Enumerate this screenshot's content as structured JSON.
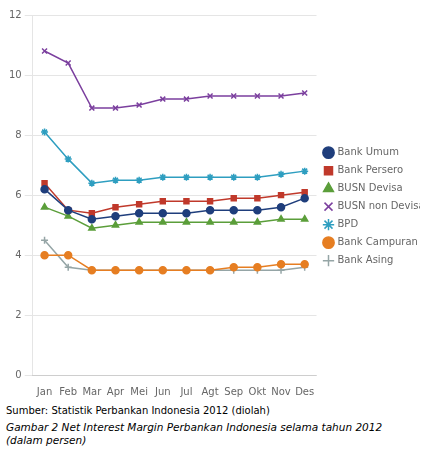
{
  "chart_data": {
    "type": "line",
    "categories": [
      "Jan",
      "Feb",
      "Mar",
      "Apr",
      "Mei",
      "Jun",
      "Jul",
      "Agt",
      "Sep",
      "Okt",
      "Nov",
      "Des"
    ],
    "series": [
      {
        "name": "Bank Umum",
        "color": "#1F3E7C",
        "marker": "circle",
        "values": [
          6.2,
          5.5,
          5.2,
          5.3,
          5.4,
          5.4,
          5.4,
          5.5,
          5.5,
          5.5,
          5.6,
          5.9
        ]
      },
      {
        "name": "Bank Persero",
        "color": "#C0392B",
        "marker": "square",
        "values": [
          6.4,
          5.5,
          5.4,
          5.6,
          5.7,
          5.8,
          5.8,
          5.8,
          5.9,
          5.9,
          6.0,
          6.1
        ]
      },
      {
        "name": "BUSN Devisa",
        "color": "#5B9E3A",
        "marker": "triangle",
        "values": [
          5.6,
          5.3,
          4.9,
          5.0,
          5.1,
          5.1,
          5.1,
          5.1,
          5.1,
          5.1,
          5.2,
          5.2
        ]
      },
      {
        "name": "BUSN non Devisa",
        "color": "#7B3F9E",
        "marker": "x",
        "values": [
          10.8,
          10.4,
          8.9,
          8.9,
          9.0,
          9.2,
          9.2,
          9.3,
          9.3,
          9.3,
          9.3,
          9.4
        ]
      },
      {
        "name": "BPD",
        "color": "#2E9EC0",
        "marker": "star",
        "values": [
          8.1,
          7.2,
          6.4,
          6.5,
          6.5,
          6.6,
          6.6,
          6.6,
          6.6,
          6.6,
          6.7,
          6.8
        ]
      },
      {
        "name": "Bank Campuran",
        "color": "#E67E22",
        "marker": "circle",
        "values": [
          4.0,
          4.0,
          3.5,
          3.5,
          3.5,
          3.5,
          3.5,
          3.5,
          3.6,
          3.6,
          3.7,
          3.7
        ]
      },
      {
        "name": "Bank Asing",
        "color": "#95A5A6",
        "marker": "plus",
        "values": [
          4.5,
          3.6,
          3.5,
          3.5,
          3.5,
          3.5,
          3.5,
          3.5,
          3.5,
          3.5,
          3.5,
          3.6
        ]
      }
    ],
    "ylim": [
      0,
      12
    ],
    "yticks": [
      0,
      2,
      4,
      6,
      8,
      10,
      12
    ],
    "grid": "y",
    "legend": "right",
    "source": "Sumber: Statistik Perbankan Indonesia 2012 (diolah)",
    "caption": "Gambar 2 Net Interest Margin Perbankan Indonesia selama tahun 2012 (dalam persen)"
  }
}
